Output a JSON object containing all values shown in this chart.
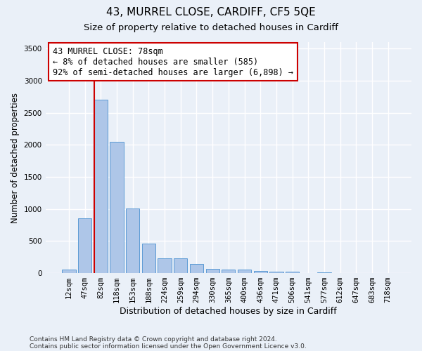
{
  "title1": "43, MURREL CLOSE, CARDIFF, CF5 5QE",
  "title2": "Size of property relative to detached houses in Cardiff",
  "xlabel": "Distribution of detached houses by size in Cardiff",
  "ylabel": "Number of detached properties",
  "categories": [
    "12sqm",
    "47sqm",
    "82sqm",
    "118sqm",
    "153sqm",
    "188sqm",
    "224sqm",
    "259sqm",
    "294sqm",
    "330sqm",
    "365sqm",
    "400sqm",
    "436sqm",
    "471sqm",
    "506sqm",
    "541sqm",
    "577sqm",
    "612sqm",
    "647sqm",
    "683sqm",
    "718sqm"
  ],
  "values": [
    60,
    855,
    2700,
    2050,
    1010,
    455,
    230,
    230,
    140,
    70,
    60,
    55,
    30,
    25,
    20,
    5,
    10,
    5,
    5,
    5,
    5
  ],
  "bar_color": "#aec6e8",
  "bar_edge_color": "#5b9bd5",
  "vline_color": "#cc0000",
  "annotation_text": "43 MURREL CLOSE: 78sqm\n← 8% of detached houses are smaller (585)\n92% of semi-detached houses are larger (6,898) →",
  "annotation_box_color": "#ffffff",
  "annotation_border_color": "#cc0000",
  "ylim": [
    0,
    3600
  ],
  "yticks": [
    0,
    500,
    1000,
    1500,
    2000,
    2500,
    3000,
    3500
  ],
  "footnote1": "Contains HM Land Registry data © Crown copyright and database right 2024.",
  "footnote2": "Contains public sector information licensed under the Open Government Licence v3.0.",
  "bg_color": "#eaf0f8",
  "axes_bg_color": "#eaf0f8",
  "grid_color": "#ffffff",
  "title1_fontsize": 11,
  "title2_fontsize": 9.5,
  "xlabel_fontsize": 9,
  "ylabel_fontsize": 8.5,
  "tick_fontsize": 7.5,
  "annotation_fontsize": 8.5
}
